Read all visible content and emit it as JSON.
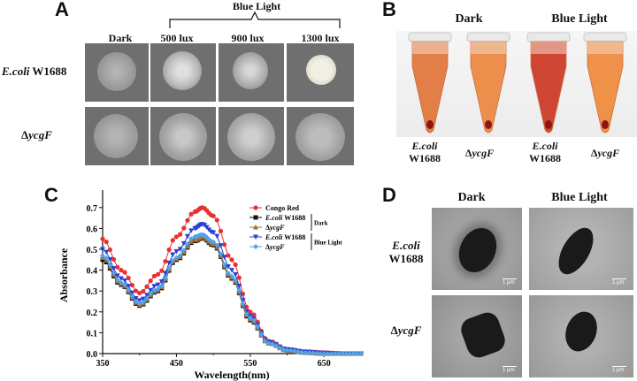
{
  "panelA": {
    "letter": "A",
    "group_header": "Blue Light",
    "columns": [
      "Dark",
      "500 lux",
      "900 lux",
      "1300 lux"
    ],
    "rows": [
      {
        "italic": "E.coli",
        "plain": " W1688"
      },
      {
        "italic": "ycgF",
        "prefix": "Δ"
      }
    ]
  },
  "panelB": {
    "letter": "B",
    "headers": [
      "Dark",
      "Blue Light"
    ],
    "tubes": [
      {
        "line1_italic": "E.coli",
        "line2": "W1688",
        "color": "#e2783e"
      },
      {
        "prefix": "Δ",
        "line1_italic": "ycgF",
        "line2": "",
        "color": "#ec8a45"
      },
      {
        "line1_italic": "E.coli",
        "line2": "W1688",
        "color": "#cf3d2a"
      },
      {
        "prefix": "Δ",
        "line1_italic": "ycgF",
        "line2": "",
        "color": "#f08c40"
      }
    ]
  },
  "panelC": {
    "letter": "C",
    "legend_dark": "Dark",
    "legend_blue": "Blue Light"
  },
  "chart_data": {
    "type": "line",
    "xlabel": "Wavelength(nm)",
    "ylabel": "Absorbance",
    "xlim": [
      350,
      700
    ],
    "ylim": [
      0,
      0.75
    ],
    "xticks": [
      350,
      450,
      550,
      650
    ],
    "yticks": [
      0.0,
      0.1,
      0.2,
      0.3,
      0.4,
      0.5,
      0.6,
      0.7
    ],
    "x": [
      350,
      375,
      400,
      425,
      450,
      475,
      485,
      500,
      525,
      550,
      575,
      600,
      625,
      650,
      675,
      700
    ],
    "series": [
      {
        "name": "Congo Red",
        "color": "#e8302e",
        "marker": "circle",
        "values": [
          0.55,
          0.4,
          0.29,
          0.38,
          0.56,
          0.68,
          0.7,
          0.66,
          0.45,
          0.2,
          0.06,
          0.02,
          0.01,
          0.005,
          0.0,
          0.0
        ]
      },
      {
        "name": "E.coli W1688",
        "group": "Dark",
        "color": "#111111",
        "marker": "square",
        "values": [
          0.45,
          0.33,
          0.23,
          0.3,
          0.45,
          0.54,
          0.555,
          0.52,
          0.36,
          0.16,
          0.05,
          0.015,
          0.005,
          0.0,
          0.0,
          0.0
        ]
      },
      {
        "name": "ycgF",
        "prefix": "Δ",
        "group": "Dark",
        "color": "#b06a2a",
        "marker": "triangle-up",
        "values": [
          0.46,
          0.335,
          0.235,
          0.305,
          0.455,
          0.545,
          0.56,
          0.525,
          0.365,
          0.165,
          0.05,
          0.015,
          0.005,
          0.0,
          0.0,
          0.0
        ]
      },
      {
        "name": "E.coli W1688",
        "group": "Blue Light",
        "color": "#2b3fd1",
        "marker": "triangle-down",
        "values": [
          0.5,
          0.36,
          0.255,
          0.33,
          0.49,
          0.6,
          0.62,
          0.58,
          0.4,
          0.18,
          0.055,
          0.02,
          0.008,
          0.003,
          0.0,
          0.0
        ]
      },
      {
        "name": "ycgF",
        "prefix": "Δ",
        "group": "Blue Light",
        "color": "#4fa3e6",
        "marker": "diamond",
        "values": [
          0.47,
          0.34,
          0.24,
          0.31,
          0.46,
          0.56,
          0.57,
          0.535,
          0.37,
          0.17,
          0.05,
          0.016,
          0.005,
          0.0,
          0.0,
          0.0
        ]
      }
    ]
  },
  "panelD": {
    "letter": "D",
    "headers": [
      "Dark",
      "Blue Light"
    ],
    "rows": [
      {
        "italic": "E.coli",
        "line2": "W1688"
      },
      {
        "italic": "ycgF",
        "prefix": "Δ"
      }
    ],
    "scalebar": "1 μm"
  }
}
